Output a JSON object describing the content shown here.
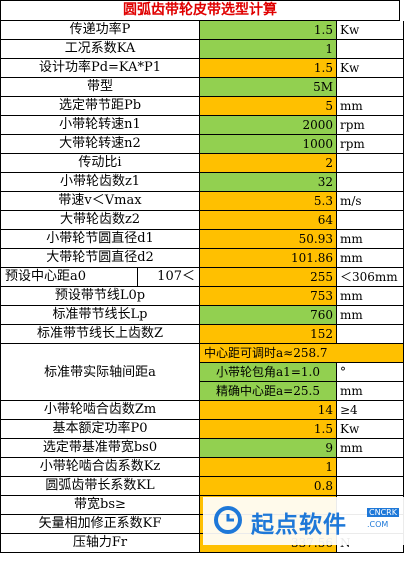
{
  "title": "圆弧齿带轮皮带选型计算",
  "rows": [
    {
      "label": "传递功率P",
      "value": "1.5",
      "unit": "Kw",
      "fill": "green"
    },
    {
      "label": "工况系数KA",
      "value": "1",
      "unit": "",
      "fill": "green"
    },
    {
      "label": "设计功率Pd=KA*P1",
      "value": "1.5",
      "unit": "Kw",
      "fill": "orange"
    },
    {
      "label": "带型",
      "value": "5M",
      "unit": "",
      "fill": "green"
    },
    {
      "label": "选定带节距Pb",
      "value": "5",
      "unit": "mm",
      "fill": "orange"
    },
    {
      "label": "小带轮转速n1",
      "value": "2000",
      "unit": "rpm",
      "fill": "green"
    },
    {
      "label": "大带轮转速n2",
      "value": "1000",
      "unit": "rpm",
      "fill": "green"
    },
    {
      "label": "传动比i",
      "value": "2",
      "unit": "",
      "fill": "orange"
    },
    {
      "label": "小带轮齿数z1",
      "value": "32",
      "unit": "",
      "fill": "green"
    },
    {
      "label": "带速v＜Vmax",
      "value": "5.3",
      "unit": "m/s",
      "fill": "orange"
    },
    {
      "label": "大带轮齿数z2",
      "value": "64",
      "unit": "",
      "fill": "orange"
    },
    {
      "label": "小带轮节圆直径d1",
      "value": "50.93",
      "unit": "mm",
      "fill": "orange"
    },
    {
      "label": "大带轮节圆直径d2",
      "value": "101.86",
      "unit": "mm",
      "fill": "orange"
    }
  ],
  "center_row": {
    "label": "预设中心距a0",
    "lower": "107＜",
    "value": "255",
    "unit": "＜306mm"
  },
  "rows2": [
    {
      "label": "预设带节线L0p",
      "value": "753",
      "unit": "mm",
      "fill": "orange"
    },
    {
      "label": "标准带节线长Lp",
      "value": "760",
      "unit": "mm",
      "fill": "green"
    },
    {
      "label": "标准带节线长上齿数Z",
      "value": "152",
      "unit": "",
      "fill": "orange"
    }
  ],
  "axis_block": {
    "label": "标准带实际轴间距a",
    "adjustable": "中心距可调时a≈258.7",
    "wrap_angle": "小带轮包角a1=1.0",
    "wrap_unit": "°",
    "precise": "精确中心距a=25.5",
    "precise_unit": "mm"
  },
  "rows3": [
    {
      "label": "小带轮啮合齿数Zm",
      "value": "14",
      "unit": "≥4",
      "fill": "orange"
    },
    {
      "label": "基本额定功率P0",
      "value": "1.5",
      "unit": "Kw",
      "fill": "orange"
    },
    {
      "label": "选定带基准带宽bs0",
      "value": "9",
      "unit": "mm",
      "fill": "green"
    },
    {
      "label": "小带轮啮合齿系数Kz",
      "value": "1",
      "unit": "",
      "fill": "orange"
    },
    {
      "label": "圆弧齿带长系数KL",
      "value": "0.8",
      "unit": "",
      "fill": "orange"
    },
    {
      "label": "带宽bs≥",
      "value": "",
      "unit": "",
      "fill": "orange"
    },
    {
      "label": "矢量相加修正系数KF",
      "value": "",
      "unit": "",
      "fill": "orange"
    },
    {
      "label": "压轴力Fr",
      "value": "337.56",
      "unit": "N",
      "fill": "orange"
    }
  ],
  "watermark": {
    "text": "起点软件",
    "badge": "CNCRK",
    "domain": ".COM"
  }
}
